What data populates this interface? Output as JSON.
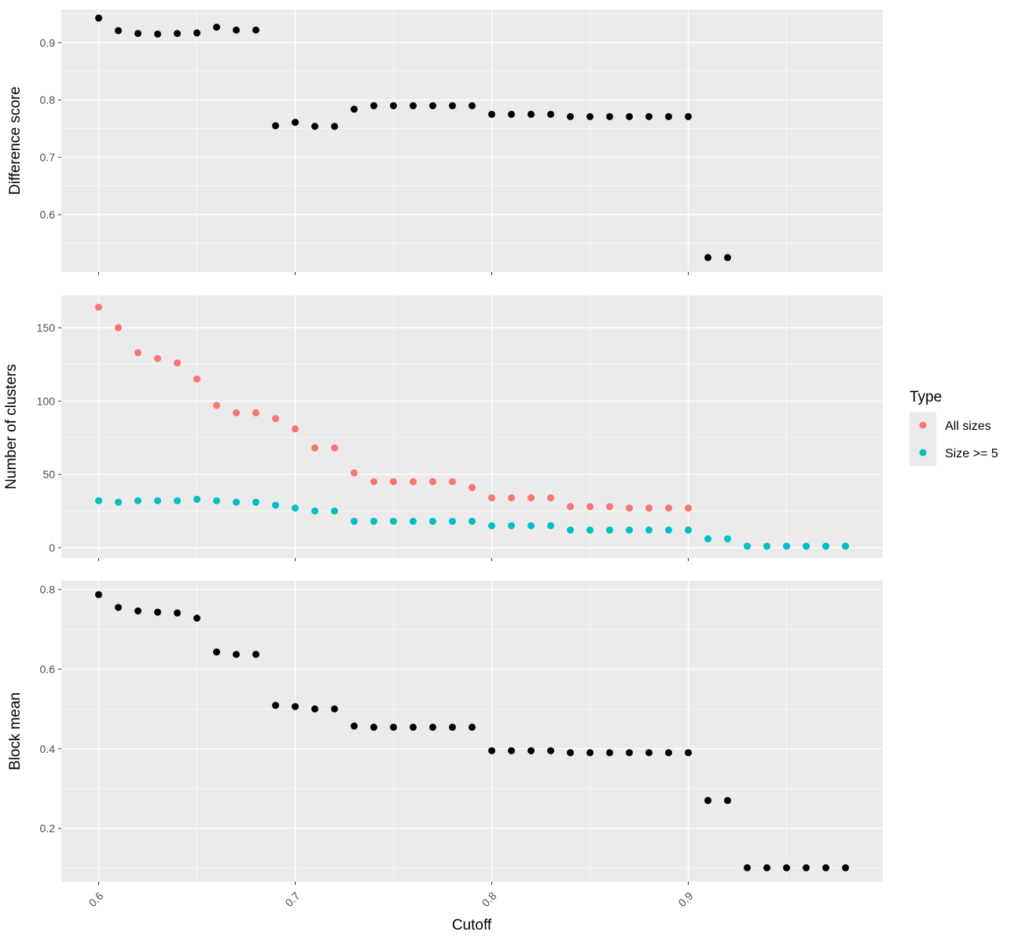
{
  "chart_data": {
    "type": "scatter",
    "facets": "three vertically stacked panels sharing the x axis",
    "grid": true,
    "background": "#EBEBEB",
    "x": [
      0.6,
      0.61,
      0.62,
      0.63,
      0.64,
      0.65,
      0.66,
      0.67,
      0.68,
      0.69,
      0.7,
      0.71,
      0.72,
      0.73,
      0.74,
      0.75,
      0.76,
      0.77,
      0.78,
      0.79,
      0.8,
      0.81,
      0.82,
      0.83,
      0.84,
      0.85,
      0.86,
      0.87,
      0.88,
      0.89,
      0.9,
      0.91,
      0.92,
      0.93,
      0.94,
      0.95,
      0.96,
      0.97,
      0.98
    ],
    "xlabel": "Cutoff",
    "xlim": [
      0.581,
      0.999
    ],
    "xticks": [
      0.6,
      0.7,
      0.8,
      0.9
    ],
    "xtick_labels": [
      "0.6",
      "0.7",
      "0.8",
      "0.9"
    ],
    "panels": [
      {
        "ylabel": "Difference score",
        "ylim": [
          0.5,
          0.958
        ],
        "yticks": [
          0.6,
          0.7,
          0.8,
          0.9
        ],
        "ytick_labels": [
          "0.6",
          "0.7",
          "0.8",
          "0.9"
        ],
        "series": [
          {
            "color": "#000000",
            "values": [
              0.943,
              0.921,
              0.916,
              0.915,
              0.916,
              0.917,
              0.927,
              0.922,
              0.922,
              0.755,
              0.761,
              0.754,
              0.754,
              0.784,
              0.79,
              0.79,
              0.79,
              0.79,
              0.79,
              0.79,
              0.775,
              0.775,
              0.775,
              0.775,
              0.771,
              0.771,
              0.771,
              0.771,
              0.771,
              0.771,
              0.771,
              0.525,
              0.525,
              null,
              null,
              null,
              null,
              null,
              null
            ]
          }
        ]
      },
      {
        "ylabel": "Number of clusters",
        "ylim": [
          -7,
          172
        ],
        "yticks": [
          0,
          50,
          100,
          150
        ],
        "ytick_labels": [
          "0",
          "50",
          "100",
          "150"
        ],
        "series": [
          {
            "name": "All sizes",
            "color": "#F8766D",
            "values": [
              164,
              150,
              133,
              129,
              126,
              115,
              97,
              92,
              92,
              88,
              81,
              68,
              68,
              51,
              45,
              45,
              45,
              45,
              45,
              41,
              34,
              34,
              34,
              34,
              28,
              28,
              28,
              27,
              27,
              27,
              27,
              null,
              null,
              null,
              null,
              null,
              null,
              null,
              null
            ]
          },
          {
            "name": "Size >= 5",
            "color": "#00BFC4",
            "values": [
              32,
              31,
              32,
              32,
              32,
              33,
              32,
              31,
              31,
              29,
              27,
              25,
              25,
              18,
              18,
              18,
              18,
              18,
              18,
              18,
              15,
              15,
              15,
              15,
              12,
              12,
              12,
              12,
              12,
              12,
              12,
              6,
              6,
              1,
              1,
              1,
              1,
              1,
              1
            ]
          }
        ]
      },
      {
        "ylabel": "Block mean",
        "ylim": [
          0.066,
          0.822
        ],
        "yticks": [
          0.2,
          0.4,
          0.6,
          0.8
        ],
        "ytick_labels": [
          "0.2",
          "0.4",
          "0.6",
          "0.8"
        ],
        "series": [
          {
            "color": "#000000",
            "values": [
              0.787,
              0.755,
              0.746,
              0.743,
              0.741,
              0.728,
              0.643,
              0.637,
              0.637,
              0.509,
              0.506,
              0.5,
              0.5,
              0.457,
              0.454,
              0.454,
              0.454,
              0.454,
              0.454,
              0.454,
              0.395,
              0.395,
              0.395,
              0.395,
              0.39,
              0.39,
              0.39,
              0.39,
              0.39,
              0.39,
              0.39,
              0.27,
              0.27,
              0.101,
              0.101,
              0.101,
              0.101,
              0.101,
              0.101
            ]
          }
        ]
      }
    ],
    "legend": {
      "title": "Type",
      "position": "right",
      "entries": [
        {
          "label": "All sizes",
          "color": "#F8766D"
        },
        {
          "label": "Size >= 5",
          "color": "#00BFC4"
        }
      ]
    }
  }
}
